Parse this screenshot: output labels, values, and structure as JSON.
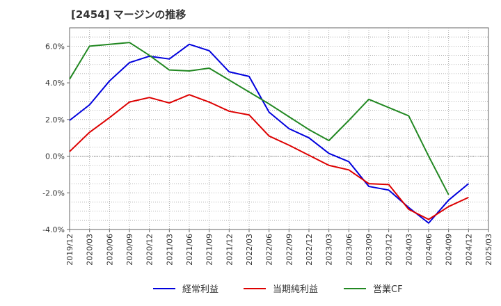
{
  "chart_data": {
    "type": "line",
    "title": "[2454]  マージンの推移",
    "xlabel": "",
    "ylabel": "",
    "x": [
      "2019/12",
      "2020/03",
      "2020/06",
      "2020/09",
      "2020/12",
      "2021/03",
      "2021/06",
      "2021/09",
      "2021/12",
      "2022/03",
      "2022/06",
      "2022/09",
      "2022/12",
      "2023/03",
      "2023/06",
      "2023/09",
      "2023/12",
      "2024/03",
      "2024/06",
      "2024/09",
      "2024/12",
      "2025/03"
    ],
    "y_ticks": [
      "-4.0%",
      "-2.0%",
      "0.0%",
      "2.0%",
      "4.0%",
      "6.0%"
    ],
    "y_tick_values": [
      -4,
      -2,
      0,
      2,
      4,
      6
    ],
    "ylim": [
      -4.0,
      7.0
    ],
    "grid": true,
    "legend_position": "bottom",
    "series": [
      {
        "name": "経常利益",
        "color": "#0000dd",
        "values": [
          1.95,
          2.8,
          4.1,
          5.1,
          5.45,
          5.3,
          6.1,
          5.75,
          4.6,
          4.35,
          2.4,
          1.5,
          1.0,
          0.15,
          -0.3,
          -1.65,
          -1.85,
          -2.8,
          -3.65,
          -2.4,
          -1.5,
          null
        ]
      },
      {
        "name": "当期純利益",
        "color": "#dd0000",
        "values": [
          0.25,
          1.3,
          2.1,
          2.95,
          3.2,
          2.9,
          3.35,
          2.95,
          2.45,
          2.25,
          1.1,
          0.6,
          0.05,
          -0.5,
          -0.75,
          -1.5,
          -1.55,
          -2.9,
          -3.45,
          -2.75,
          -2.25,
          null
        ]
      },
      {
        "name": "営業CF",
        "color": "#228822",
        "values": [
          4.2,
          6.0,
          6.1,
          6.2,
          5.5,
          4.7,
          4.65,
          4.8,
          4.15,
          3.5,
          2.85,
          2.15,
          1.45,
          0.85,
          1.95,
          3.1,
          2.65,
          2.2,
          0.0,
          -2.1,
          null,
          null
        ]
      }
    ]
  }
}
